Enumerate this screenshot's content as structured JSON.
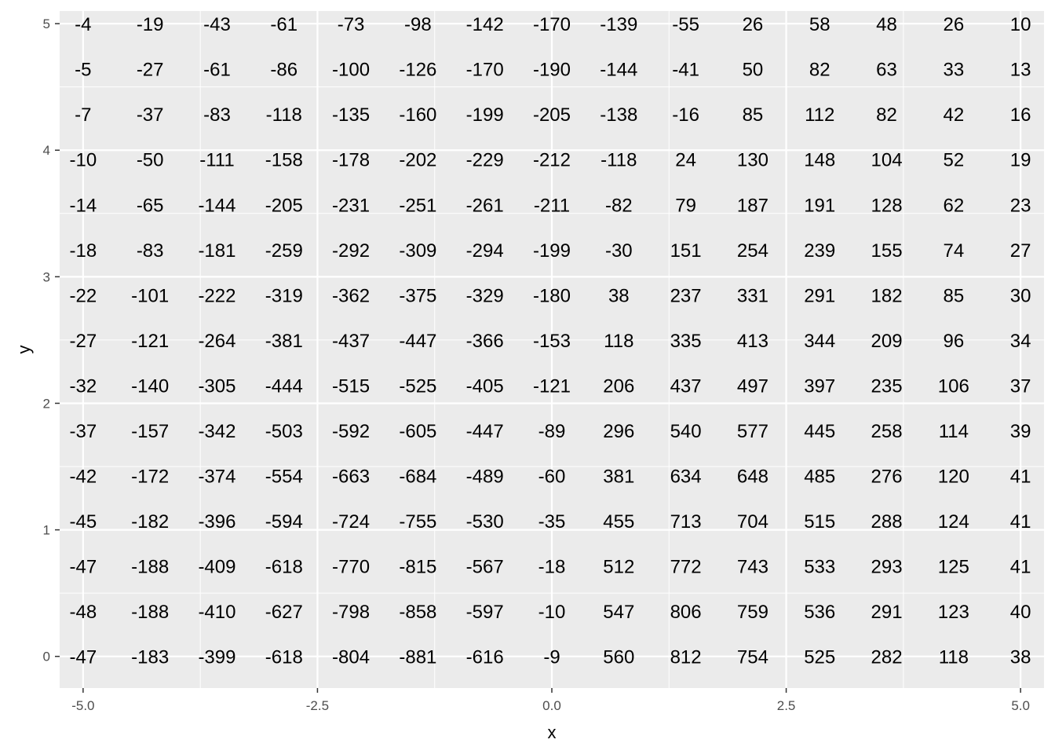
{
  "chart_data": {
    "type": "heatmap",
    "title": "",
    "xlabel": "x",
    "ylabel": "y",
    "xlim": [
      -5.25,
      5.25
    ],
    "ylim": [
      -0.25,
      5.1
    ],
    "x_ticks": [
      -5.0,
      -2.5,
      0.0,
      2.5,
      5.0
    ],
    "x_tick_labels": [
      "-5.0",
      "-2.5",
      "0.0",
      "2.5",
      "5.0"
    ],
    "y_ticks": [
      0,
      1,
      2,
      3,
      4,
      5
    ],
    "y_tick_labels": [
      "0",
      "1",
      "2",
      "3",
      "4",
      "5"
    ],
    "grid": true,
    "panel_background": "#ebebeb",
    "grid_color": "#ffffff",
    "x": [
      -5.0,
      -4.2857,
      -3.5714,
      -2.8571,
      -2.1429,
      -1.4286,
      -0.7143,
      0.0,
      0.7143,
      1.4286,
      2.1429,
      2.8571,
      3.5714,
      4.2857,
      5.0
    ],
    "y": [
      5.0,
      4.6429,
      4.2857,
      3.9286,
      3.5714,
      3.2143,
      2.8571,
      2.5,
      2.1429,
      1.7857,
      1.4286,
      1.0714,
      0.7143,
      0.3571,
      0.0
    ],
    "values": [
      [
        "-4",
        "-19",
        "-43",
        "-61",
        "-73",
        "-98",
        "-142",
        "-170",
        "-139",
        "-55",
        "26",
        "58",
        "48",
        "26",
        "10"
      ],
      [
        "-5",
        "-27",
        "-61",
        "-86",
        "-100",
        "-126",
        "-170",
        "-190",
        "-144",
        "-41",
        "50",
        "82",
        "63",
        "33",
        "13"
      ],
      [
        "-7",
        "-37",
        "-83",
        "-118",
        "-135",
        "-160",
        "-199",
        "-205",
        "-138",
        "-16",
        "85",
        "112",
        "82",
        "42",
        "16"
      ],
      [
        "-10",
        "-50",
        "-111",
        "-158",
        "-178",
        "-202",
        "-229",
        "-212",
        "-118",
        "24",
        "130",
        "148",
        "104",
        "52",
        "19"
      ],
      [
        "-14",
        "-65",
        "-144",
        "-205",
        "-231",
        "-251",
        "-261",
        "-211",
        "-82",
        "79",
        "187",
        "191",
        "128",
        "62",
        "23"
      ],
      [
        "-18",
        "-83",
        "-181",
        "-259",
        "-292",
        "-309",
        "-294",
        "-199",
        "-30",
        "151",
        "254",
        "239",
        "155",
        "74",
        "27"
      ],
      [
        "-22",
        "-101",
        "-222",
        "-319",
        "-362",
        "-375",
        "-329",
        "-180",
        "38",
        "237",
        "331",
        "291",
        "182",
        "85",
        "30"
      ],
      [
        "-27",
        "-121",
        "-264",
        "-381",
        "-437",
        "-447",
        "-366",
        "-153",
        "118",
        "335",
        "413",
        "344",
        "209",
        "96",
        "34"
      ],
      [
        "-32",
        "-140",
        "-305",
        "-444",
        "-515",
        "-525",
        "-405",
        "-121",
        "206",
        "437",
        "497",
        "397",
        "235",
        "106",
        "37"
      ],
      [
        "-37",
        "-157",
        "-342",
        "-503",
        "-592",
        "-605",
        "-447",
        "-89",
        "296",
        "540",
        "577",
        "445",
        "258",
        "114",
        "39"
      ],
      [
        "-42",
        "-172",
        "-374",
        "-554",
        "-663",
        "-684",
        "-489",
        "-60",
        "381",
        "634",
        "648",
        "485",
        "276",
        "120",
        "41"
      ],
      [
        "-45",
        "-182",
        "-396",
        "-594",
        "-724",
        "-755",
        "-530",
        "-35",
        "455",
        "713",
        "704",
        "515",
        "288",
        "124",
        "41"
      ],
      [
        "-47",
        "-188",
        "-409",
        "-618",
        "-770",
        "-815",
        "-567",
        "-18",
        "512",
        "772",
        "743",
        "533",
        "293",
        "125",
        "41"
      ],
      [
        "-48",
        "-188",
        "-410",
        "-627",
        "-798",
        "-858",
        "-597",
        "-10",
        "547",
        "806",
        "759",
        "536",
        "291",
        "123",
        "40"
      ],
      [
        "-47",
        "-183",
        "-399",
        "-618",
        "-804",
        "-881",
        "-616",
        "-9",
        "560",
        "812",
        "754",
        "525",
        "282",
        "118",
        "38"
      ]
    ]
  }
}
